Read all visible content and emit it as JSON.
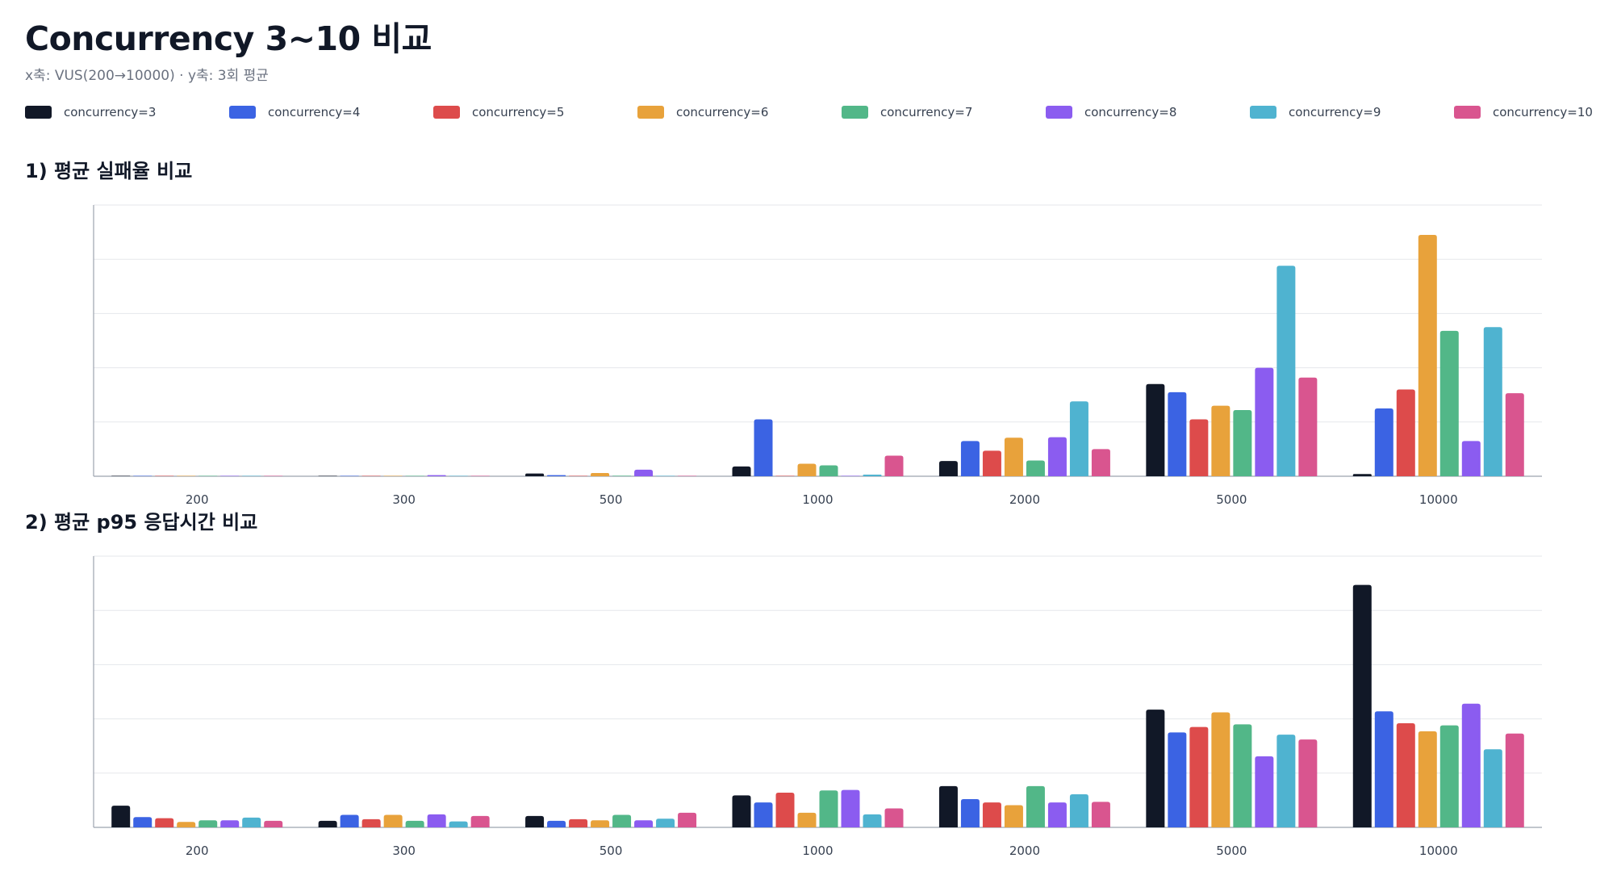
{
  "page": {
    "title": "Concurrency 3~10 비교",
    "subtitle": "x축: VUS(200→10000) · y축: 3회 평균"
  },
  "legend": [
    {
      "label": "concurrency=3",
      "color": "#111827"
    },
    {
      "label": "concurrency=4",
      "color": "#3b63e3"
    },
    {
      "label": "concurrency=5",
      "color": "#dd4b4b"
    },
    {
      "label": "concurrency=6",
      "color": "#e8a23b"
    },
    {
      "label": "concurrency=7",
      "color": "#52b788"
    },
    {
      "label": "concurrency=8",
      "color": "#8b5cf0"
    },
    {
      "label": "concurrency=9",
      "color": "#4fb3d0"
    },
    {
      "label": "concurrency=10",
      "color": "#d9558f"
    }
  ],
  "sections": {
    "failure_title": "1) 평균 실패율 비교",
    "p95_title": "2) 평균 p95 응답시간 비교"
  },
  "chart_data": [
    {
      "type": "bar",
      "title": "1) 평균 실패율 비교",
      "xlabel": "",
      "ylabel": "",
      "ylim": [
        0,
        5
      ],
      "grid": true,
      "categories": [
        "200",
        "300",
        "500",
        "1000",
        "2000",
        "5000",
        "10000"
      ],
      "series": [
        {
          "name": "concurrency=3",
          "values": [
            0,
            0,
            0.05,
            0.18,
            0.28,
            1.7,
            0.04
          ]
        },
        {
          "name": "concurrency=4",
          "values": [
            0,
            0,
            0.02,
            1.05,
            0.65,
            1.55,
            1.25
          ]
        },
        {
          "name": "concurrency=5",
          "values": [
            0,
            0,
            0,
            0,
            0.47,
            1.05,
            1.6
          ]
        },
        {
          "name": "concurrency=6",
          "values": [
            0,
            0,
            0.06,
            0.23,
            0.71,
            1.3,
            4.45
          ]
        },
        {
          "name": "concurrency=7",
          "values": [
            0,
            0,
            0.01,
            0.2,
            0.29,
            1.22,
            2.68
          ]
        },
        {
          "name": "concurrency=8",
          "values": [
            0,
            0.02,
            0.12,
            0,
            0.72,
            2.0,
            0.65
          ]
        },
        {
          "name": "concurrency=9",
          "values": [
            0,
            0,
            0,
            0.03,
            1.38,
            3.88,
            2.75
          ]
        },
        {
          "name": "concurrency=10",
          "values": [
            0,
            0,
            0,
            0.38,
            0.5,
            1.82,
            1.53
          ]
        }
      ]
    },
    {
      "type": "bar",
      "title": "2) 평균 p95 응답시간 비교",
      "xlabel": "",
      "ylabel": "",
      "ylim": [
        0,
        5
      ],
      "grid": true,
      "categories": [
        "200",
        "300",
        "500",
        "1000",
        "2000",
        "5000",
        "10000"
      ],
      "series": [
        {
          "name": "concurrency=3",
          "values": [
            0.4,
            0.12,
            0.21,
            0.59,
            0.76,
            2.17,
            4.47
          ]
        },
        {
          "name": "concurrency=4",
          "values": [
            0.19,
            0.23,
            0.12,
            0.46,
            0.52,
            1.75,
            2.14
          ]
        },
        {
          "name": "concurrency=5",
          "values": [
            0.17,
            0.15,
            0.15,
            0.64,
            0.46,
            1.85,
            1.92
          ]
        },
        {
          "name": "concurrency=6",
          "values": [
            0.1,
            0.23,
            0.13,
            0.27,
            0.41,
            2.12,
            1.77
          ]
        },
        {
          "name": "concurrency=7",
          "values": [
            0.13,
            0.12,
            0.23,
            0.68,
            0.76,
            1.9,
            1.88
          ]
        },
        {
          "name": "concurrency=8",
          "values": [
            0.13,
            0.24,
            0.13,
            0.69,
            0.46,
            1.31,
            2.28
          ]
        },
        {
          "name": "concurrency=9",
          "values": [
            0.18,
            0.11,
            0.16,
            0.24,
            0.61,
            1.71,
            1.44
          ]
        },
        {
          "name": "concurrency=10",
          "values": [
            0.12,
            0.21,
            0.27,
            0.35,
            0.47,
            1.62,
            1.73
          ]
        }
      ]
    }
  ]
}
